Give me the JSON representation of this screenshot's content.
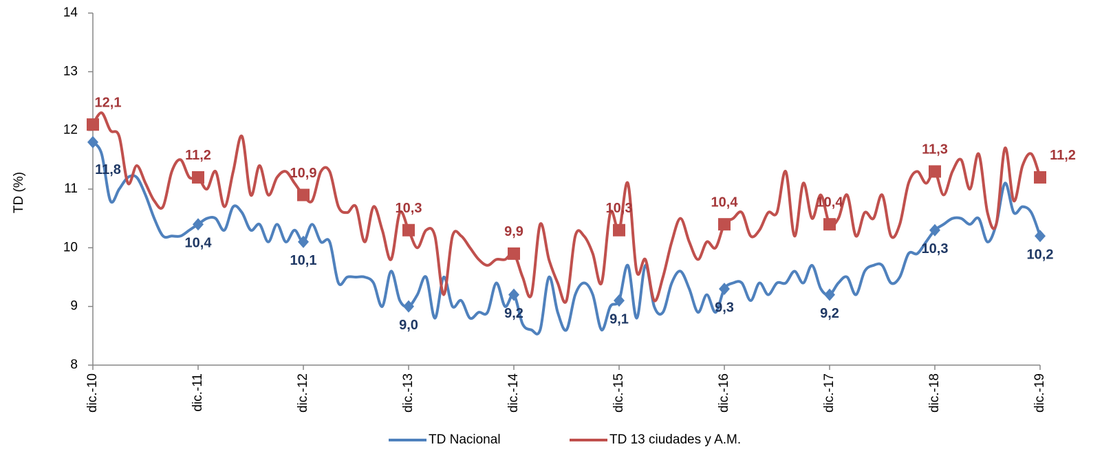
{
  "chart_data": {
    "type": "line",
    "ylabel": "TD (%)",
    "categories": [
      "dic.-10",
      null,
      null,
      null,
      null,
      null,
      null,
      null,
      null,
      null,
      null,
      null,
      "dic.-11",
      null,
      null,
      null,
      null,
      null,
      null,
      null,
      null,
      null,
      null,
      null,
      "dic.-12",
      null,
      null,
      null,
      null,
      null,
      null,
      null,
      null,
      null,
      null,
      null,
      "dic.-13",
      null,
      null,
      null,
      null,
      null,
      null,
      null,
      null,
      null,
      null,
      null,
      "dic.-14",
      null,
      null,
      null,
      null,
      null,
      null,
      null,
      null,
      null,
      null,
      null,
      "dic.-15",
      null,
      null,
      null,
      null,
      null,
      null,
      null,
      null,
      null,
      null,
      null,
      "dic.-16",
      null,
      null,
      null,
      null,
      null,
      null,
      null,
      null,
      null,
      null,
      null,
      "dic.-17",
      null,
      null,
      null,
      null,
      null,
      null,
      null,
      null,
      null,
      null,
      null,
      "dic.-18",
      null,
      null,
      null,
      null,
      null,
      null,
      null,
      null,
      null,
      null,
      null,
      "dic.-19"
    ],
    "series": [
      {
        "name": "TD Nacional",
        "color": "#4f81bd",
        "marker": "diamond",
        "label_color": "#1f3864",
        "values": [
          11.8,
          11.6,
          10.8,
          11.0,
          11.2,
          11.2,
          10.9,
          10.5,
          10.2,
          10.2,
          10.2,
          10.3,
          10.4,
          10.5,
          10.5,
          10.3,
          10.7,
          10.6,
          10.3,
          10.4,
          10.1,
          10.4,
          10.1,
          10.3,
          10.1,
          10.4,
          10.1,
          10.1,
          9.4,
          9.5,
          9.5,
          9.5,
          9.4,
          9.0,
          9.6,
          9.1,
          9.0,
          9.2,
          9.5,
          8.8,
          9.5,
          9.0,
          9.1,
          8.8,
          8.9,
          8.9,
          9.4,
          9.0,
          9.2,
          8.7,
          8.6,
          8.6,
          9.5,
          8.9,
          8.6,
          9.2,
          9.4,
          9.2,
          8.6,
          9.0,
          9.1,
          9.7,
          8.8,
          9.7,
          9.0,
          8.9,
          9.4,
          9.6,
          9.3,
          8.9,
          9.2,
          8.9,
          9.3,
          9.4,
          9.4,
          9.1,
          9.4,
          9.2,
          9.4,
          9.4,
          9.6,
          9.4,
          9.7,
          9.3,
          9.2,
          9.4,
          9.5,
          9.2,
          9.6,
          9.7,
          9.7,
          9.4,
          9.5,
          9.9,
          9.9,
          10.1,
          10.3,
          10.4,
          10.5,
          10.5,
          10.4,
          10.5,
          10.1,
          10.4,
          11.1,
          10.6,
          10.7,
          10.6,
          10.2
        ],
        "value_labels": [
          "11,8",
          null,
          null,
          null,
          null,
          null,
          null,
          null,
          null,
          null,
          null,
          null,
          "10,4",
          null,
          null,
          null,
          null,
          null,
          null,
          null,
          null,
          null,
          null,
          null,
          "10,1",
          null,
          null,
          null,
          null,
          null,
          null,
          null,
          null,
          null,
          null,
          null,
          "9,0",
          null,
          null,
          null,
          null,
          null,
          null,
          null,
          null,
          null,
          null,
          null,
          "9,2",
          null,
          null,
          null,
          null,
          null,
          null,
          null,
          null,
          null,
          null,
          null,
          "9,1",
          null,
          null,
          null,
          null,
          null,
          null,
          null,
          null,
          null,
          null,
          null,
          "9,3",
          null,
          null,
          null,
          null,
          null,
          null,
          null,
          null,
          null,
          null,
          null,
          "9,2",
          null,
          null,
          null,
          null,
          null,
          null,
          null,
          null,
          null,
          null,
          null,
          "10,3",
          null,
          null,
          null,
          null,
          null,
          null,
          null,
          null,
          null,
          null,
          null,
          "10,2"
        ]
      },
      {
        "name": "TD 13 ciudades y A.M.",
        "color": "#c0504d",
        "marker": "square",
        "label_color": "#a5383a",
        "values": [
          12.1,
          12.3,
          12.0,
          11.9,
          11.1,
          11.4,
          11.1,
          10.8,
          10.7,
          11.3,
          11.5,
          11.2,
          11.2,
          11.0,
          11.3,
          10.7,
          11.3,
          11.9,
          10.9,
          11.4,
          10.9,
          11.2,
          11.3,
          11.1,
          10.9,
          10.8,
          11.3,
          11.3,
          10.7,
          10.6,
          10.7,
          10.1,
          10.7,
          10.3,
          9.8,
          10.6,
          10.3,
          10.0,
          10.3,
          10.2,
          9.2,
          10.2,
          10.2,
          10.0,
          9.8,
          9.7,
          9.8,
          9.8,
          9.9,
          9.5,
          9.2,
          10.4,
          9.8,
          9.4,
          9.1,
          10.2,
          10.2,
          9.9,
          9.4,
          10.6,
          10.3,
          11.1,
          9.6,
          9.8,
          9.1,
          9.5,
          10.1,
          10.5,
          10.1,
          9.8,
          10.1,
          10.0,
          10.4,
          10.5,
          10.6,
          10.2,
          10.3,
          10.6,
          10.6,
          11.3,
          10.2,
          11.1,
          10.5,
          10.9,
          10.4,
          10.5,
          10.9,
          10.2,
          10.6,
          10.5,
          10.9,
          10.2,
          10.4,
          11.1,
          11.3,
          11.1,
          11.3,
          10.9,
          11.3,
          11.5,
          11.0,
          11.6,
          10.6,
          10.4,
          11.7,
          10.8,
          11.4,
          11.6,
          11.2
        ],
        "value_labels": [
          "12,1",
          null,
          null,
          null,
          null,
          null,
          null,
          null,
          null,
          null,
          null,
          null,
          "11,2",
          null,
          null,
          null,
          null,
          null,
          null,
          null,
          null,
          null,
          null,
          null,
          "10,9",
          null,
          null,
          null,
          null,
          null,
          null,
          null,
          null,
          null,
          null,
          null,
          "10,3",
          null,
          null,
          null,
          null,
          null,
          null,
          null,
          null,
          null,
          null,
          null,
          "9,9",
          null,
          null,
          null,
          null,
          null,
          null,
          null,
          null,
          null,
          null,
          null,
          "10,3",
          null,
          null,
          null,
          null,
          null,
          null,
          null,
          null,
          null,
          null,
          null,
          "10,4",
          null,
          null,
          null,
          null,
          null,
          null,
          null,
          null,
          null,
          null,
          null,
          "10,4",
          null,
          null,
          null,
          null,
          null,
          null,
          null,
          null,
          null,
          null,
          null,
          "11,3",
          null,
          null,
          null,
          null,
          null,
          null,
          null,
          null,
          null,
          null,
          null,
          "11,2"
        ]
      }
    ],
    "ylim": [
      8,
      14
    ],
    "yticks": [
      8,
      9,
      10,
      11,
      12,
      13,
      14
    ],
    "grid": false,
    "legend": "bottom"
  }
}
